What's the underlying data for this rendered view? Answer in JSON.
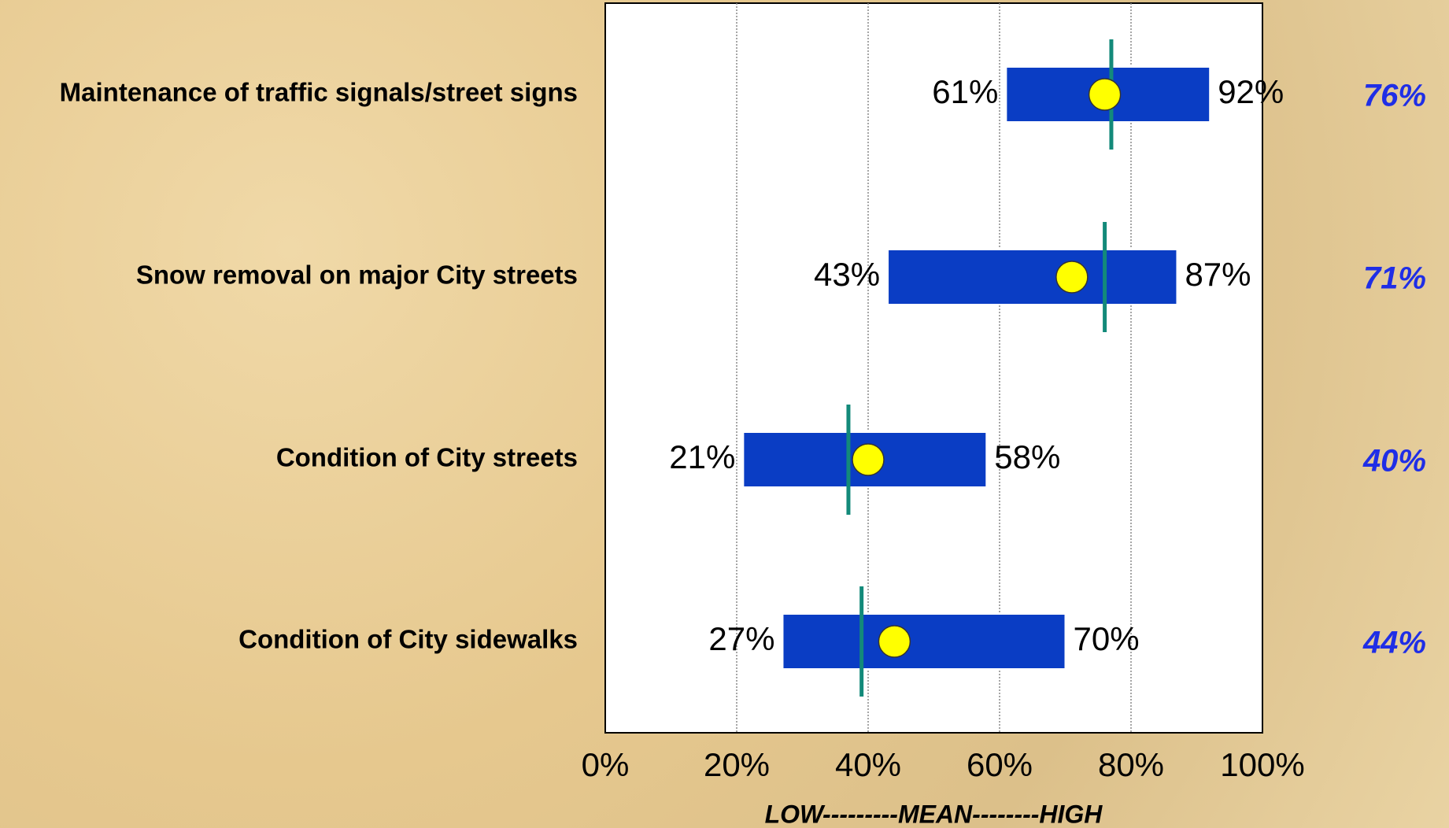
{
  "chart_data": {
    "type": "range_bar",
    "categories": [
      "Maintenance of traffic signals/street signs",
      "Snow removal on major City streets",
      "Condition of City streets",
      "Condition of City sidewalks"
    ],
    "series": [
      {
        "color": "#0a3dc4",
        "values": [
          61,
          43,
          21,
          27
        ],
        "value_labels": [
          "61%",
          "43%",
          "21%",
          "27%"
        ]
      },
      {
        "color": "#0a3dc4",
        "values": [
          92,
          87,
          58,
          70
        ],
        "value_labels": [
          "92%",
          "87%",
          "58%",
          "70%"
        ]
      },
      {
        "color": "#ffff00",
        "values": [
          76,
          71,
          40,
          44
        ],
        "value_labels": [
          "76%",
          "71%",
          "40%",
          "44%"
        ]
      },
      {
        "color": "#138a7a",
        "values": [
          77,
          76,
          37,
          39
        ]
      }
    ],
    "xlabel": "LOW---------MEAN--------HIGH",
    "xlim": [
      0,
      100
    ],
    "xticks": [
      {
        "value": 0,
        "label": "0%"
      },
      {
        "value": 20,
        "label": "20%"
      },
      {
        "value": 40,
        "label": "40%"
      },
      {
        "value": 60,
        "label": "60%"
      },
      {
        "value": 80,
        "label": "80%"
      },
      {
        "value": 100,
        "label": "100%"
      }
    ],
    "grid": true
  }
}
